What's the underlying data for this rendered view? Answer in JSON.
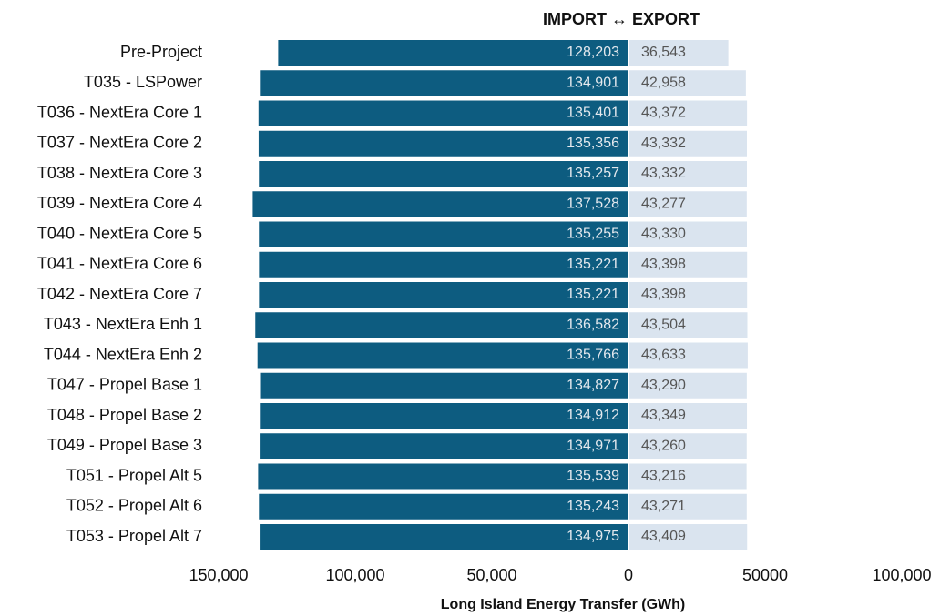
{
  "chart_data": {
    "type": "diverging-bar",
    "title": "IMPORT ↔ EXPORT",
    "xlabel": "Long Island Energy Transfer (GWh)",
    "categories": [
      "Pre-Project",
      "T035 - LSPower",
      "T036 - NextEra Core 1",
      "T037 - NextEra Core 2",
      "T038 - NextEra Core 3",
      "T039 - NextEra Core 4",
      "T040 - NextEra Core 5",
      "T041 - NextEra Core 6",
      "T042 - NextEra Core 7",
      "T043 - NextEra Enh 1",
      "T044 - NextEra Enh 2",
      "T047 - Propel Base 1",
      "T048 - Propel Base 2",
      "T049 - Propel Base 3",
      "T051 - Propel Alt 5",
      "T052 - Propel Alt 6",
      "T053 - Propel Alt 7"
    ],
    "series": [
      {
        "name": "IMPORT",
        "color": "#0d5c80",
        "values": [
          -128203,
          -134901,
          -135401,
          -135356,
          -135257,
          -137528,
          -135255,
          -135221,
          -135221,
          -136582,
          -135766,
          -134827,
          -134912,
          -134971,
          -135539,
          -135243,
          -134975
        ],
        "value_labels": [
          "128,203",
          "134,901",
          "135,401",
          "135,356",
          "135,257",
          "137,528",
          "135,255",
          "135,221",
          "135,221",
          "136,582",
          "135,766",
          "134,827",
          "134,912",
          "134,971",
          "135,539",
          "135,243",
          "134,975"
        ]
      },
      {
        "name": "EXPORT",
        "color": "#dae4ef",
        "values": [
          36543,
          42958,
          43372,
          43332,
          43332,
          43277,
          43330,
          43398,
          43398,
          43504,
          43633,
          43290,
          43349,
          43260,
          43216,
          43271,
          43409
        ],
        "value_labels": [
          "36,543",
          "42,958",
          "43,372",
          "43,332",
          "43,332",
          "43,277",
          "43,330",
          "43,398",
          "43,398",
          "43,504",
          "43,633",
          "43,290",
          "43,349",
          "43,260",
          "43,216",
          "43,271",
          "43,409"
        ]
      }
    ],
    "xlim": [
      -150000,
      100000
    ],
    "xticks": [
      {
        "value": -150000,
        "label": "150,000"
      },
      {
        "value": -100000,
        "label": "100,000"
      },
      {
        "value": -50000,
        "label": "50,000"
      },
      0,
      50000,
      {
        "value": 100000,
        "label": "100,000"
      }
    ]
  }
}
